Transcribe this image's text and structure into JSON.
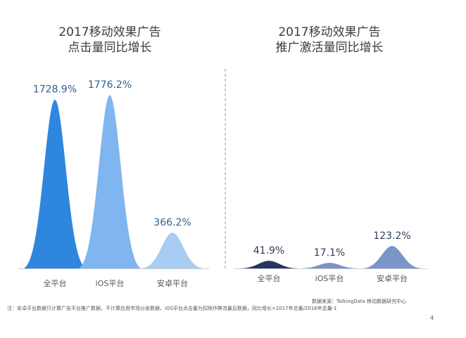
{
  "colors": {
    "divider": "#9a9a9a",
    "baseline": "#cfcfcf"
  },
  "chart_data": [
    {
      "type": "bar",
      "shape": "bell",
      "title": [
        "2017移动效果广告",
        "点击量同比增长"
      ],
      "categories": [
        "全平台",
        "iOS平台",
        "安卓平台"
      ],
      "values": [
        1728.9,
        1776.2,
        366.2
      ],
      "value_labels": [
        "1728.9%",
        "1776.2%",
        "366.2%"
      ],
      "colors": [
        "#2e86de",
        "#7fb6ef",
        "#a8ccf2"
      ],
      "ylim": [
        0,
        1776.2
      ]
    },
    {
      "type": "bar",
      "shape": "bell",
      "title": [
        "2017移动效果广告",
        "推广激活量同比增长"
      ],
      "categories": [
        "全平台",
        "iOS平台",
        "安卓平台"
      ],
      "values": [
        41.9,
        17.1,
        123.2
      ],
      "value_labels": [
        "41.9%",
        "17.1%",
        "123.2%"
      ],
      "colors": [
        "#26375f",
        "#7d92c4",
        "#7b95cb"
      ],
      "ylim": [
        0,
        123.2
      ]
    }
  ],
  "footer": {
    "source": "数据来源：TalkingData 移动数据研究中心",
    "note": "注：安卓平台数据只计算广告平台推广数据，不计算应用市场分发数据，iOS平台点击量为扣除作弊流量后数据，同比增长=2017年总量/2016年总量-1",
    "page_number": "4"
  }
}
